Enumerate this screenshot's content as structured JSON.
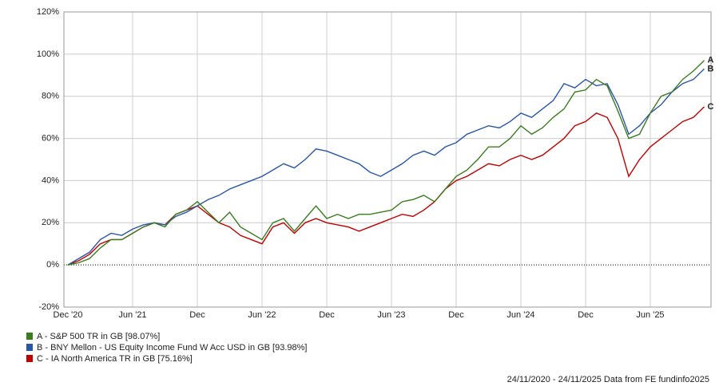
{
  "chart_data": {
    "type": "line",
    "categories": [
      "Dec '20",
      null,
      null,
      null,
      null,
      null,
      "Jun '21",
      null,
      null,
      null,
      null,
      null,
      "Dec",
      null,
      null,
      null,
      null,
      null,
      "Jun '22",
      null,
      null,
      null,
      null,
      null,
      "Dec",
      null,
      null,
      null,
      null,
      null,
      "Jun '23",
      null,
      null,
      null,
      null,
      null,
      "Dec",
      null,
      null,
      null,
      null,
      null,
      "Jun '24",
      null,
      null,
      null,
      null,
      null,
      "Dec",
      null,
      null,
      null,
      null,
      null,
      "Jun '25",
      null,
      null,
      null,
      null,
      null
    ],
    "series": [
      {
        "name": "A - S&P 500 TR in GB [98.07%]",
        "label": "A",
        "color": "#3a7d1e",
        "values": [
          0,
          1,
          3,
          8,
          12,
          12,
          15,
          18,
          20,
          18,
          24,
          26,
          30,
          25,
          20,
          25,
          18,
          15,
          12,
          20,
          22,
          16,
          22,
          28,
          22,
          24,
          22,
          24,
          24,
          25,
          26,
          30,
          31,
          33,
          30,
          36,
          42,
          45,
          50,
          56,
          56,
          60,
          66,
          62,
          65,
          70,
          74,
          82,
          83,
          88,
          85,
          73,
          60,
          62,
          72,
          80,
          82,
          88,
          92,
          97
        ]
      },
      {
        "name": "B - BNY Mellon - US Equity Income Fund W Acc USD in GB [93.98%]",
        "label": "B",
        "color": "#2a56a8",
        "values": [
          0,
          3,
          6,
          12,
          15,
          14,
          17,
          19,
          20,
          19,
          23,
          25,
          28,
          31,
          33,
          36,
          38,
          40,
          42,
          45,
          48,
          46,
          50,
          55,
          54,
          52,
          50,
          48,
          44,
          42,
          45,
          48,
          52,
          54,
          52,
          56,
          58,
          62,
          64,
          66,
          65,
          68,
          72,
          70,
          74,
          78,
          86,
          84,
          88,
          85,
          86,
          76,
          62,
          66,
          72,
          76,
          82,
          86,
          88,
          93
        ]
      },
      {
        "name": "C - IA North America TR in GB [75.16%]",
        "label": "C",
        "color": "#c00000",
        "values": [
          0,
          2,
          5,
          10,
          12,
          12,
          15,
          18,
          20,
          19,
          24,
          26,
          28,
          24,
          20,
          18,
          14,
          12,
          10,
          18,
          20,
          15,
          20,
          22,
          20,
          19,
          18,
          16,
          18,
          20,
          22,
          24,
          23,
          26,
          30,
          36,
          40,
          42,
          45,
          48,
          47,
          50,
          52,
          50,
          52,
          56,
          60,
          66,
          68,
          72,
          70,
          60,
          42,
          50,
          56,
          60,
          64,
          68,
          70,
          75
        ]
      }
    ],
    "ylim": [
      -20,
      120
    ],
    "yticks": [
      {
        "value": -20,
        "label": "-20%"
      },
      {
        "value": 0,
        "label": "0%"
      },
      {
        "value": 20,
        "label": "20%"
      },
      {
        "value": 40,
        "label": "40%"
      },
      {
        "value": 60,
        "label": "60%"
      },
      {
        "value": 80,
        "label": "80%"
      },
      {
        "value": 100,
        "label": "100%"
      },
      {
        "value": 120,
        "label": "120%"
      }
    ],
    "grid": true,
    "footer": "24/11/2020 - 24/11/2025 Data from FE fundinfo2025"
  }
}
